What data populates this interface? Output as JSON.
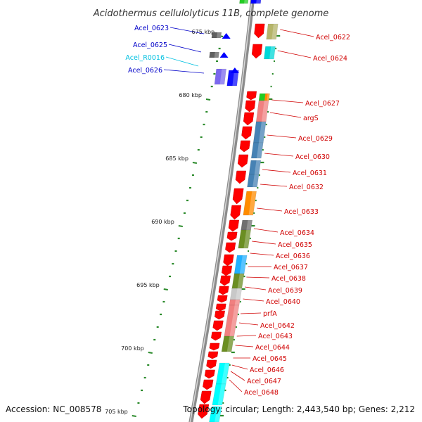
{
  "title": "Acidothermus cellulolyticus 11B, complete genome",
  "accession": "Accession: NC_008578",
  "summary": "Topology: circular; Length: 2,443,540 bp; Genes: 2,212",
  "colors": {
    "backbone": "#8c8c8c",
    "tick": "#2a8a2a",
    "label_plus": "#d00000",
    "label_minus": "#0000c8",
    "label_rna": "#00c0e0"
  },
  "kbp_marks": [
    {
      "label": "675 kbp",
      "pos": 675
    },
    {
      "label": "680 kbp",
      "pos": 680
    },
    {
      "label": "685 kbp",
      "pos": 685
    },
    {
      "label": "690 kbp",
      "pos": 690
    },
    {
      "label": "695 kbp",
      "pos": 695
    },
    {
      "label": "700 kbp",
      "pos": 700
    },
    {
      "label": "705 kbp",
      "pos": 705
    }
  ],
  "minus_labels": [
    {
      "text": "Acel_0623",
      "kind": "minus"
    },
    {
      "text": "Acel_0625",
      "kind": "minus"
    },
    {
      "text": "Acel_R0016",
      "kind": "rna"
    },
    {
      "text": "Acel_0626",
      "kind": "minus"
    }
  ],
  "plus_labels": [
    {
      "text": "Acel_0622"
    },
    {
      "text": "Acel_0624"
    },
    {
      "text": "Acel_0627"
    },
    {
      "text": "argS"
    },
    {
      "text": "Acel_0629"
    },
    {
      "text": "Acel_0630"
    },
    {
      "text": "Acel_0631"
    },
    {
      "text": "Acel_0632"
    },
    {
      "text": "Acel_0633"
    },
    {
      "text": "Acel_0634"
    },
    {
      "text": "Acel_0635"
    },
    {
      "text": "Acel_0636"
    },
    {
      "text": "Acel_0637"
    },
    {
      "text": "Acel_0638"
    },
    {
      "text": "Acel_0639"
    },
    {
      "text": "Acel_0640"
    },
    {
      "text": "prfA"
    },
    {
      "text": "Acel_0642"
    },
    {
      "text": "Acel_0643"
    },
    {
      "text": "Acel_0644"
    },
    {
      "text": "Acel_0645"
    },
    {
      "text": "Acel_0646"
    },
    {
      "text": "Acel_0647"
    },
    {
      "text": "Acel_0648"
    }
  ],
  "cog_colors": {
    "yellow_green": "#b5b56a",
    "cyan": "#00d8d8",
    "green": "#22cc22",
    "orange": "#ff8c00",
    "salmon": "#f08080",
    "steel_blue": "#4682b4",
    "gray": "#707070",
    "olive": "#6b8e23",
    "light_blue": "#20b0ff",
    "light_gray": "#c8c8c8",
    "aqua": "#00ffff",
    "purple": "#7b68ee"
  }
}
